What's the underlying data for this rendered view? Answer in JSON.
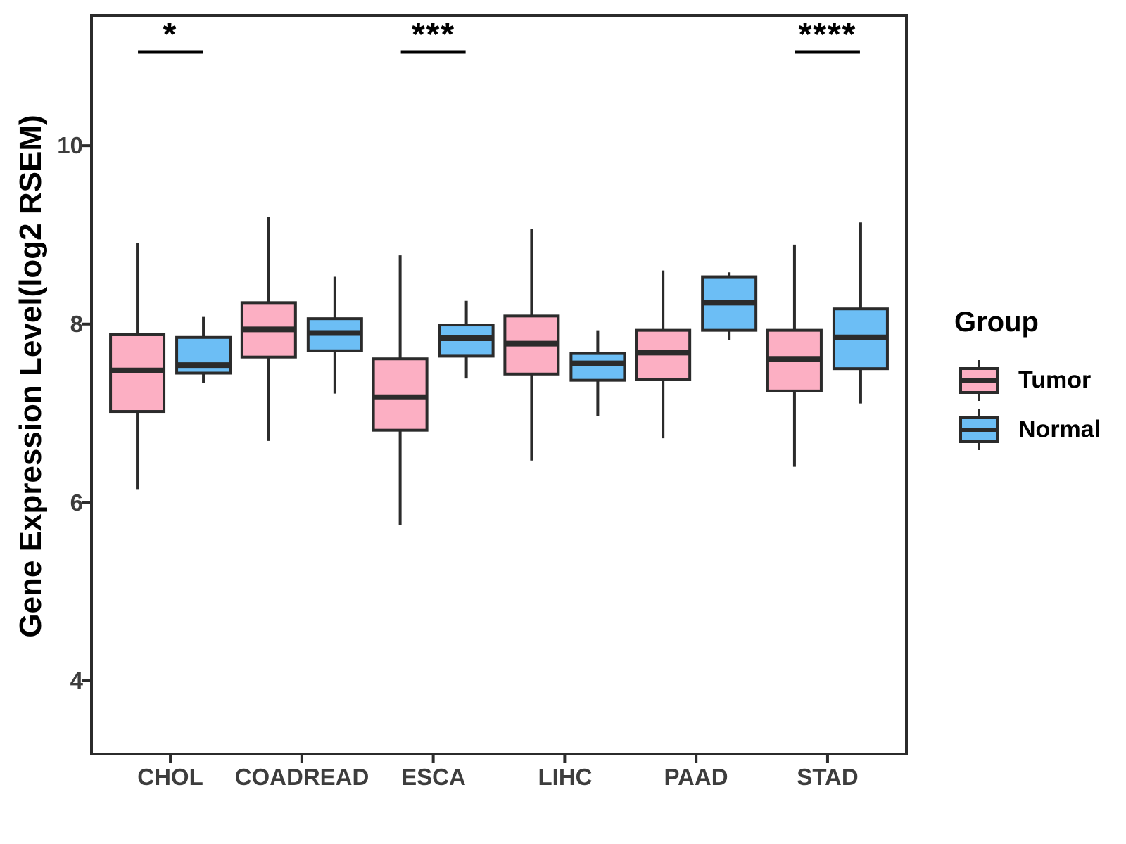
{
  "figure": {
    "background": "#ffffff"
  },
  "chart_data": {
    "type": "boxplot",
    "title": "",
    "xlabel": "",
    "ylabel": "Gene Expression Level(log2 RSEM)",
    "ylim": [
      3.18,
      11.46
    ],
    "yticks": [
      10,
      8,
      6,
      4
    ],
    "ytick_labels": [
      "10",
      "8",
      "6",
      "4"
    ],
    "categories": [
      "CHOL",
      "COADREAD",
      "ESCA",
      "LIHC",
      "PAAD",
      "STAD"
    ],
    "grid": false,
    "legend_position": "right",
    "series": [
      {
        "name": "Tumor",
        "color": "#FCAFC3",
        "boxes": [
          {
            "category": "CHOL",
            "whisker_low": 6.15,
            "q1": 7.02,
            "median": 7.48,
            "q3": 7.88,
            "whisker_high": 8.91
          },
          {
            "category": "COADREAD",
            "whisker_low": 6.69,
            "q1": 7.63,
            "median": 7.94,
            "q3": 8.24,
            "whisker_high": 9.2
          },
          {
            "category": "ESCA",
            "whisker_low": 5.75,
            "q1": 6.81,
            "median": 7.18,
            "q3": 7.61,
            "whisker_high": 8.77
          },
          {
            "category": "LIHC",
            "whisker_low": 6.47,
            "q1": 7.44,
            "median": 7.78,
            "q3": 8.09,
            "whisker_high": 9.07
          },
          {
            "category": "PAAD",
            "whisker_low": 6.72,
            "q1": 7.38,
            "median": 7.68,
            "q3": 7.93,
            "whisker_high": 8.6
          },
          {
            "category": "STAD",
            "whisker_low": 6.4,
            "q1": 7.25,
            "median": 7.61,
            "q3": 7.93,
            "whisker_high": 8.89
          }
        ]
      },
      {
        "name": "Normal",
        "color": "#6CBEF5",
        "boxes": [
          {
            "category": "CHOL",
            "whisker_low": 7.34,
            "q1": 7.45,
            "median": 7.54,
            "q3": 7.85,
            "whisker_high": 8.08
          },
          {
            "category": "COADREAD",
            "whisker_low": 7.22,
            "q1": 7.7,
            "median": 7.9,
            "q3": 8.06,
            "whisker_high": 8.53
          },
          {
            "category": "ESCA",
            "whisker_low": 7.39,
            "q1": 7.64,
            "median": 7.84,
            "q3": 7.99,
            "whisker_high": 8.26
          },
          {
            "category": "LIHC",
            "whisker_low": 6.97,
            "q1": 7.37,
            "median": 7.56,
            "q3": 7.67,
            "whisker_high": 7.93
          },
          {
            "category": "PAAD",
            "whisker_low": 7.82,
            "q1": 7.93,
            "median": 8.24,
            "q3": 8.53,
            "whisker_high": 8.58
          },
          {
            "category": "STAD",
            "whisker_low": 7.11,
            "q1": 7.5,
            "median": 7.85,
            "q3": 8.17,
            "whisker_high": 9.14
          }
        ]
      }
    ],
    "significance": [
      {
        "category": "CHOL",
        "label": "*"
      },
      {
        "category": "ESCA",
        "label": "***"
      },
      {
        "category": "STAD",
        "label": "****"
      }
    ],
    "style": {
      "box_border_color": "#2B2B2B",
      "axis_color": "#2B2B2B",
      "tick_label_color": "#3D3D3D",
      "significance_color": "#000000"
    }
  },
  "legend": {
    "title": "Group",
    "items": [
      {
        "label": "Tumor",
        "color": "#FCAFC3"
      },
      {
        "label": "Normal",
        "color": "#6CBEF5"
      }
    ]
  }
}
